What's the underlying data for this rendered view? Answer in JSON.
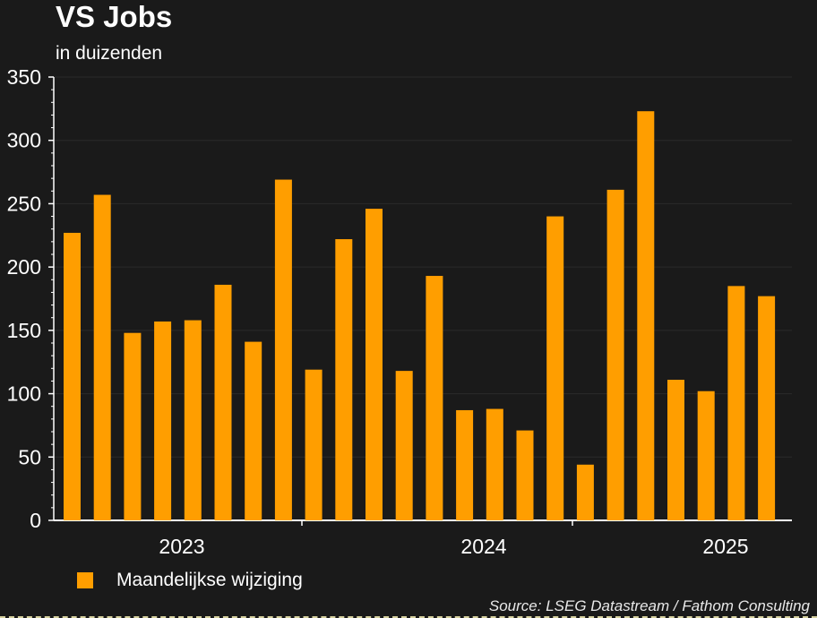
{
  "title": "VS Jobs",
  "subtitle": "in duizenden",
  "legend": {
    "label": "Maandelijkse wijziging"
  },
  "source": "Source: LSEG Datastream / Fathom Consulting",
  "colors": {
    "bar": "#ff9e00",
    "background": "#1a1a1a",
    "axis": "#ffffff",
    "grid": "#2a2a2a"
  },
  "chart_data": {
    "type": "bar",
    "title": "VS Jobs",
    "subtitle": "in duizenden",
    "xlabel": "",
    "ylabel": "",
    "ylim": [
      0,
      350
    ],
    "yticks": [
      0,
      50,
      100,
      150,
      200,
      250,
      300,
      350
    ],
    "x_year_labels": [
      "2023",
      "2024",
      "2025"
    ],
    "grid": true,
    "legend_position": "bottom-left",
    "series": [
      {
        "name": "Maandelijkse wijziging",
        "values": [
          227,
          257,
          148,
          157,
          158,
          186,
          141,
          269,
          119,
          222,
          246,
          118,
          193,
          87,
          88,
          71,
          240,
          44,
          261,
          323,
          111,
          102,
          185,
          177
        ]
      }
    ]
  }
}
